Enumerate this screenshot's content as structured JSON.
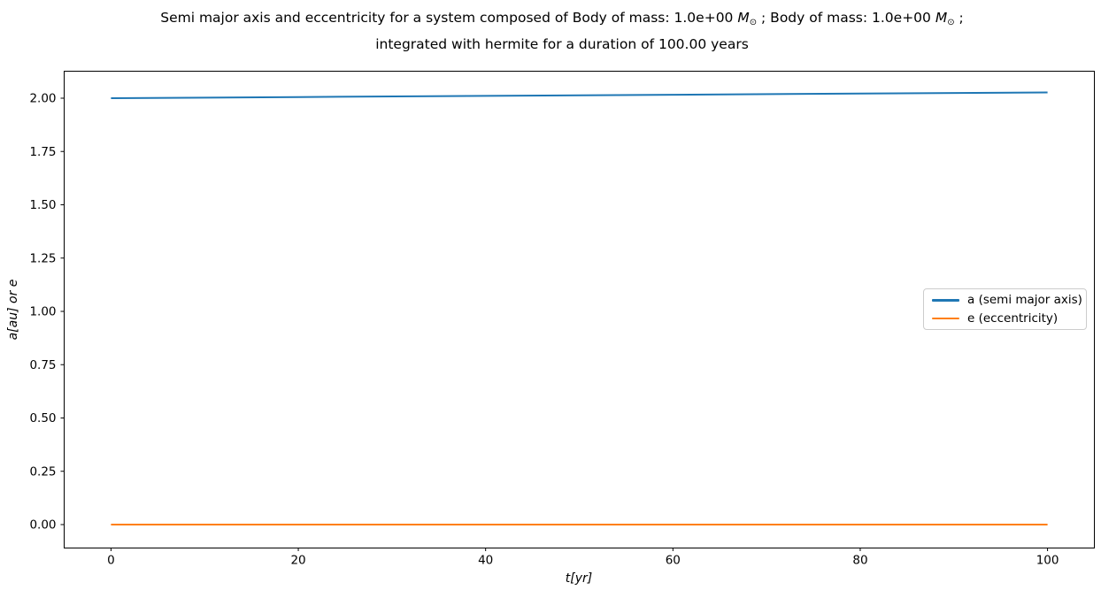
{
  "title": {
    "line1_segments": [
      {
        "text": "Semi major axis and eccentricity for a system composed of Body of mass: 1.0e+00 ",
        "style": "normal"
      },
      {
        "text": "M",
        "style": "italic"
      },
      {
        "text": "⊙",
        "style": "subscript"
      },
      {
        "text": " ; Body of mass: 1.0e+00 ",
        "style": "normal"
      },
      {
        "text": "M",
        "style": "italic"
      },
      {
        "text": "⊙",
        "style": "subscript"
      },
      {
        "text": " ;",
        "style": "normal"
      }
    ],
    "line2": "integrated with hermite for a duration of 100.00 years"
  },
  "chart_data": {
    "type": "line",
    "title": "Semi major axis and eccentricity for a system composed of Body of mass: 1.0e+00 M⊙ ; Body of mass: 1.0e+00 M⊙ ; integrated with hermite for a duration of 100.00 years",
    "xlabel": "t[yr]",
    "ylabel": "a[au] or e",
    "xlim": [
      -5,
      105
    ],
    "ylim": [
      -0.11,
      2.1265
    ],
    "x_ticks": [
      0,
      20,
      40,
      60,
      80,
      100
    ],
    "y_ticks": [
      0.0,
      0.25,
      0.5,
      0.75,
      1.0,
      1.25,
      1.5,
      1.75,
      2.0
    ],
    "grid": false,
    "legend_position": "center right",
    "series": [
      {
        "name": "a (semi major axis)",
        "color": "#1f77b4",
        "x": [
          0,
          20,
          40,
          60,
          80,
          100
        ],
        "y": [
          2.0,
          2.0054,
          2.0108,
          2.0162,
          2.0216,
          2.027
        ]
      },
      {
        "name": "e (eccentricity)",
        "color": "#ff7f0e",
        "x": [
          0,
          20,
          40,
          60,
          80,
          100
        ],
        "y": [
          0.0,
          0.0,
          0.0,
          0.0,
          0.0,
          0.0
        ]
      }
    ]
  }
}
